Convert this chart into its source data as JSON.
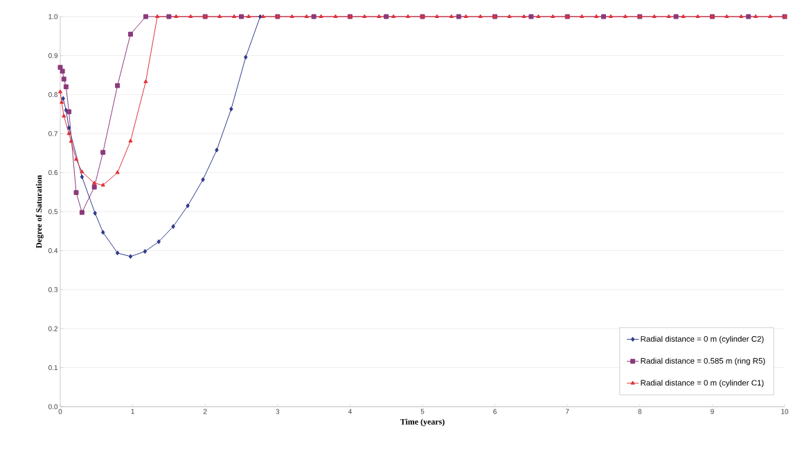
{
  "chart_data": {
    "type": "line",
    "xlabel": "Time (years)",
    "ylabel": "Degree of Saturation",
    "xlim": [
      0,
      10
    ],
    "ylim": [
      0,
      1
    ],
    "xticks": [
      0,
      1,
      2,
      3,
      4,
      5,
      6,
      7,
      8,
      9,
      10
    ],
    "yticks": [
      {
        "value": 0,
        "label": "0.0"
      },
      {
        "value": 0.1,
        "label": "0.1"
      },
      {
        "value": 0.2,
        "label": "0.2"
      },
      {
        "value": 0.3,
        "label": "0.3"
      },
      {
        "value": 0.4,
        "label": "0.4"
      },
      {
        "value": 0.5,
        "label": "0.5"
      },
      {
        "value": 0.6,
        "label": "0.6"
      },
      {
        "value": 0.7,
        "label": "0.7"
      },
      {
        "value": 0.8,
        "label": "0.8"
      },
      {
        "value": 0.9,
        "label": "0.9"
      },
      {
        "value": 1,
        "label": "1.0"
      }
    ],
    "grid": "y",
    "legend": "bottom right",
    "line_style": "solid",
    "series": [
      {
        "name": "Radial distance = 0 m (cylinder C2)",
        "color": "#2e3a8c",
        "marker": "diamond",
        "x": [
          0.04,
          0.08,
          0.12,
          0.3,
          0.48,
          0.59,
          0.79,
          0.97,
          1.17,
          1.36,
          1.56,
          1.76,
          1.97,
          2.16,
          2.36,
          2.56,
          2.76
        ],
        "values": [
          0.79,
          0.76,
          0.715,
          0.589,
          0.496,
          0.447,
          0.394,
          0.385,
          0.398,
          0.423,
          0.462,
          0.515,
          0.582,
          0.658,
          0.763,
          0.896,
          1.0
        ]
      },
      {
        "name": "Radial distance = 0.585 m (ring R5)",
        "color": "#8b3a7a",
        "marker": "square",
        "x": [
          0,
          0.03,
          0.05,
          0.08,
          0.12,
          0.22,
          0.3,
          0.47,
          0.59,
          0.79,
          0.97,
          1.18,
          1.5,
          2.0,
          2.5,
          3.0,
          3.5,
          4.0,
          4.5,
          5.0,
          5.5,
          6.0,
          6.5,
          7.0,
          7.5,
          8.0,
          8.5,
          9.0,
          9.5,
          10.0
        ],
        "values": [
          0.87,
          0.86,
          0.84,
          0.82,
          0.756,
          0.549,
          0.498,
          0.563,
          0.652,
          0.823,
          0.955,
          1.0,
          1.0,
          1.0,
          1.0,
          1.0,
          1.0,
          1.0,
          1.0,
          1.0,
          1.0,
          1.0,
          1.0,
          1.0,
          1.0,
          1.0,
          1.0,
          1.0,
          1.0,
          1.0
        ]
      },
      {
        "name": "Radial distance = 0 m (cylinder C1)",
        "color": "#e0323a",
        "marker": "triangle",
        "x": [
          0,
          0.02,
          0.05,
          0.12,
          0.15,
          0.22,
          0.3,
          0.47,
          0.59,
          0.79,
          0.97,
          1.18,
          1.34,
          1.6,
          1.8,
          2.0,
          2.2,
          2.4,
          2.6,
          2.8,
          3.0,
          3.2,
          3.4,
          3.6,
          3.8,
          4.0,
          4.2,
          4.4,
          4.6,
          4.8,
          5.0,
          5.2,
          5.4,
          5.6,
          5.8,
          6.0,
          6.2,
          6.4,
          6.6,
          6.8,
          7.0,
          7.2,
          7.4,
          7.6,
          7.8,
          8.0,
          8.2,
          8.4,
          8.6,
          8.8,
          9.0,
          9.2,
          9.4,
          9.6,
          9.8,
          10.0
        ],
        "values": [
          0.807,
          0.78,
          0.745,
          0.7,
          0.68,
          0.634,
          0.602,
          0.573,
          0.568,
          0.6,
          0.681,
          0.833,
          1.0,
          1.0,
          1.0,
          1.0,
          1.0,
          1.0,
          1.0,
          1.0,
          1.0,
          1.0,
          1.0,
          1.0,
          1.0,
          1.0,
          1.0,
          1.0,
          1.0,
          1.0,
          1.0,
          1.0,
          1.0,
          1.0,
          1.0,
          1.0,
          1.0,
          1.0,
          1.0,
          1.0,
          1.0,
          1.0,
          1.0,
          1.0,
          1.0,
          1.0,
          1.0,
          1.0,
          1.0,
          1.0,
          1.0,
          1.0,
          1.0,
          1.0,
          1.0,
          1.0
        ]
      }
    ]
  }
}
